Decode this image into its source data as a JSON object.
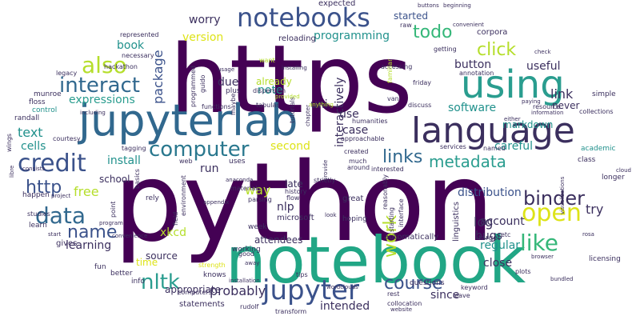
{
  "palette": {
    "dark_purple": "#440154",
    "indigo": "#3b528b",
    "teal": "#21918c",
    "green": "#35b779",
    "sea_green": "#2a9d8f",
    "lime": "#b5de2b",
    "yellow_green": "#dde318",
    "blue_purple": "#414487"
  },
  "words": [
    {
      "id": "python",
      "text": "python"
    },
    {
      "id": "https",
      "text": "https"
    },
    {
      "id": "notebook",
      "text": "notebook"
    },
    {
      "id": "jupyterlab",
      "text": "jupyterlab"
    },
    {
      "id": "using",
      "text": "using"
    },
    {
      "id": "language",
      "text": "language"
    },
    {
      "id": "notebooks",
      "text": "notebooks"
    },
    {
      "id": "jupyter",
      "text": "jupyter"
    },
    {
      "id": "computer",
      "text": "computer"
    },
    {
      "id": "data",
      "text": "data"
    },
    {
      "id": "credit",
      "text": "credit"
    },
    {
      "id": "interact",
      "text": "interact"
    },
    {
      "id": "also",
      "text": "also"
    },
    {
      "id": "binder",
      "text": "binder"
    },
    {
      "id": "open",
      "text": "open"
    },
    {
      "id": "like",
      "text": "like"
    },
    {
      "id": "links",
      "text": "links"
    },
    {
      "id": "metadata",
      "text": "metadata"
    },
    {
      "id": "course",
      "text": "course"
    },
    {
      "id": "name",
      "text": "name"
    },
    {
      "id": "nltk",
      "text": "nltk"
    },
    {
      "id": "http",
      "text": "http"
    },
    {
      "id": "todo",
      "text": "todo"
    },
    {
      "id": "click",
      "text": "click"
    },
    {
      "id": "work",
      "text": "work"
    },
    {
      "id": "package",
      "text": "package"
    },
    {
      "id": "programming",
      "text": "programming"
    },
    {
      "id": "version",
      "text": "version"
    },
    {
      "id": "worry",
      "text": "worry"
    },
    {
      "id": "started",
      "text": "started"
    },
    {
      "id": "expected",
      "text": "expected"
    },
    {
      "id": "book",
      "text": "book"
    },
    {
      "id": "note",
      "text": "note"
    },
    {
      "id": "already",
      "text": "already"
    },
    {
      "id": "uni",
      "text": "uni"
    },
    {
      "id": "interactively",
      "text": "interactively"
    },
    {
      "id": "button",
      "text": "button"
    },
    {
      "id": "useful",
      "text": "useful"
    },
    {
      "id": "expressions",
      "text": "expressions"
    },
    {
      "id": "software",
      "text": "software"
    },
    {
      "id": "link",
      "text": "link"
    },
    {
      "id": "never",
      "text": "never"
    },
    {
      "id": "text",
      "text": "text"
    },
    {
      "id": "cells",
      "text": "cells"
    },
    {
      "id": "use",
      "text": "use"
    },
    {
      "id": "case",
      "text": "case"
    },
    {
      "id": "second",
      "text": "second"
    },
    {
      "id": "install",
      "text": "install"
    },
    {
      "id": "run",
      "text": "run"
    },
    {
      "id": "free",
      "text": "free"
    },
    {
      "id": "school",
      "text": "school"
    },
    {
      "id": "careful",
      "text": "careful"
    },
    {
      "id": "markdown",
      "text": "markdown"
    },
    {
      "id": "distribution",
      "text": "distribution"
    },
    {
      "id": "try",
      "text": "try"
    },
    {
      "id": "way",
      "text": "way"
    },
    {
      "id": "nlp",
      "text": "nlp"
    },
    {
      "id": "late",
      "text": "late"
    },
    {
      "id": "xkcd",
      "text": "xkcd"
    },
    {
      "id": "source",
      "text": "source"
    },
    {
      "id": "learning",
      "text": "learning"
    },
    {
      "id": "attendees",
      "text": "attendees"
    },
    {
      "id": "probably",
      "text": "probably"
    },
    {
      "id": "regular",
      "text": "regular"
    },
    {
      "id": "log",
      "text": "log"
    },
    {
      "id": "account",
      "text": "account"
    },
    {
      "id": "bugs",
      "text": "bugs"
    },
    {
      "id": "since",
      "text": "since"
    },
    {
      "id": "close",
      "text": "close"
    },
    {
      "id": "time",
      "text": "time"
    },
    {
      "id": "appropriate",
      "text": "appropriate"
    },
    {
      "id": "intended",
      "text": "intended"
    },
    {
      "id": "due",
      "text": "due"
    },
    {
      "id": "reloading",
      "text": "reloading"
    },
    {
      "id": "corpora",
      "text": "corpora"
    },
    {
      "id": "want",
      "text": "want"
    },
    {
      "id": "uses",
      "text": "uses"
    },
    {
      "id": "hoping",
      "text": "hoping"
    },
    {
      "id": "week",
      "text": "week"
    },
    {
      "id": "working",
      "text": "working"
    },
    {
      "id": "knows",
      "text": "knows"
    },
    {
      "id": "statements",
      "text": "statements"
    },
    {
      "id": "microsoft",
      "text": "microsoft"
    },
    {
      "id": "strictly",
      "text": "strictly"
    },
    {
      "id": "history",
      "text": "history"
    },
    {
      "id": "flow",
      "text": "flow"
    },
    {
      "id": "great",
      "text": "great"
    },
    {
      "id": "linguistics",
      "text": "linguistics"
    },
    {
      "id": "automatically",
      "text": "automatically"
    },
    {
      "id": "target",
      "text": "target"
    },
    {
      "id": "simple",
      "text": "simple"
    },
    {
      "id": "academic",
      "text": "academic"
    },
    {
      "id": "class",
      "text": "class"
    },
    {
      "id": "longer",
      "text": "longer"
    },
    {
      "id": "licensing",
      "text": "licensing"
    },
    {
      "id": "keyword",
      "text": "keyword"
    },
    {
      "id": "questions",
      "text": "questions"
    },
    {
      "id": "rest",
      "text": "rest"
    },
    {
      "id": "leave",
      "text": "leave"
    },
    {
      "id": "collocation",
      "text": "collocation"
    },
    {
      "id": "transform",
      "text": "transform"
    },
    {
      "id": "rudolf",
      "text": "rudolf"
    },
    {
      "id": "fun",
      "text": "fun"
    },
    {
      "id": "better",
      "text": "better"
    },
    {
      "id": "info",
      "text": "info"
    },
    {
      "id": "computers",
      "text": "computers"
    },
    {
      "id": "tips",
      "text": "tips"
    },
    {
      "id": "gives",
      "text": "gives"
    },
    {
      "id": "learn",
      "text": "learn"
    },
    {
      "id": "studies",
      "text": "studies"
    },
    {
      "id": "happen",
      "text": "happen"
    },
    {
      "id": "rely",
      "text": "rely"
    },
    {
      "id": "basics",
      "text": "basics"
    },
    {
      "id": "field",
      "text": "field"
    },
    {
      "id": "environment",
      "text": "environment"
    },
    {
      "id": "parsing",
      "text": "parsing"
    },
    {
      "id": "tagging",
      "text": "tagging"
    },
    {
      "id": "courtesy",
      "text": "courtesy"
    },
    {
      "id": "randall",
      "text": "randall"
    },
    {
      "id": "munroe",
      "text": "munroe"
    },
    {
      "id": "floss",
      "text": "floss"
    },
    {
      "id": "control",
      "text": "control"
    },
    {
      "id": "legacy",
      "text": "legacy"
    },
    {
      "id": "hackathon",
      "text": "hackathon"
    },
    {
      "id": "necessary",
      "text": "necessary"
    },
    {
      "id": "represented",
      "text": "represented"
    },
    {
      "id": "guido",
      "text": "guido"
    },
    {
      "id": "plus",
      "text": "plus"
    },
    {
      "id": "functions",
      "text": "functions"
    },
    {
      "id": "tabular",
      "text": "tabular"
    },
    {
      "id": "tutorials",
      "text": "tutorials"
    },
    {
      "id": "friday",
      "text": "friday"
    },
    {
      "id": "annotation",
      "text": "annotation"
    },
    {
      "id": "van",
      "text": "van"
    },
    {
      "id": "discuss",
      "text": "discuss"
    },
    {
      "id": "humanities",
      "text": "humanities"
    },
    {
      "id": "created",
      "text": "created"
    },
    {
      "id": "interested",
      "text": "interested"
    },
    {
      "id": "much",
      "text": "much"
    },
    {
      "id": "around",
      "text": "around"
    },
    {
      "id": "services",
      "text": "services"
    },
    {
      "id": "named",
      "text": "named"
    },
    {
      "id": "etc",
      "text": "etc"
    },
    {
      "id": "resource",
      "text": "resource"
    },
    {
      "id": "collections",
      "text": "collections"
    },
    {
      "id": "information",
      "text": "information"
    },
    {
      "id": "paying",
      "text": "paying"
    },
    {
      "id": "buttons",
      "text": "buttons"
    },
    {
      "id": "beginning",
      "text": "beginning"
    },
    {
      "id": "raw",
      "text": "raw"
    },
    {
      "id": "convenient",
      "text": "convenient"
    },
    {
      "id": "getting",
      "text": "getting"
    },
    {
      "id": "check",
      "text": "check"
    },
    {
      "id": "accessing",
      "text": "accessing"
    },
    {
      "id": "dispersion",
      "text": "dispersion"
    },
    {
      "id": "provided",
      "text": "provided"
    },
    {
      "id": "chapter",
      "text": "chapter"
    },
    {
      "id": "approachable",
      "text": "approachable"
    },
    {
      "id": "reasonably",
      "text": "reasonably"
    },
    {
      "id": "starting",
      "text": "starting"
    },
    {
      "id": "interface",
      "text": "interface"
    },
    {
      "id": "web",
      "text": "web"
    },
    {
      "id": "anaconda",
      "text": "anaconda"
    },
    {
      "id": "materials",
      "text": "materials"
    },
    {
      "id": "appendix",
      "text": "appendix"
    },
    {
      "id": "point",
      "text": "point"
    },
    {
      "id": "program",
      "text": "program"
    },
    {
      "id": "start",
      "text": "start"
    },
    {
      "id": "convenience",
      "text": "convenience"
    },
    {
      "id": "strength",
      "text": "strength"
    },
    {
      "id": "installation",
      "text": "installation"
    },
    {
      "id": "good",
      "text": "good"
    },
    {
      "id": "away",
      "text": "away"
    },
    {
      "id": "wordclouds",
      "text": "wordclouds"
    },
    {
      "id": "website",
      "text": "website"
    },
    {
      "id": "plots",
      "text": "plots"
    },
    {
      "id": "visualizations",
      "text": "visualizations"
    },
    {
      "id": "browser",
      "text": "browser"
    },
    {
      "id": "rosa",
      "text": "rosa"
    },
    {
      "id": "bundled",
      "text": "bundled"
    },
    {
      "id": "cloud",
      "text": "cloud"
    },
    {
      "id": "libre",
      "text": "libre"
    },
    {
      "id": "wings",
      "text": "wings"
    },
    {
      "id": "consists",
      "text": "consists"
    },
    {
      "id": "project",
      "text": "project"
    },
    {
      "id": "including",
      "text": "including"
    },
    {
      "id": "maybe",
      "text": "maybe"
    },
    {
      "id": "programmed",
      "text": "programmed"
    },
    {
      "id": "installing",
      "text": "installing"
    },
    {
      "id": "usage",
      "text": "usage"
    },
    {
      "id": "familiar",
      "text": "familiar"
    },
    {
      "id": "either",
      "text": "either"
    },
    {
      "id": "look",
      "text": "look"
    },
    {
      "id": "provide",
      "text": "provide"
    },
    {
      "id": "anything",
      "text": "anything"
    }
  ]
}
